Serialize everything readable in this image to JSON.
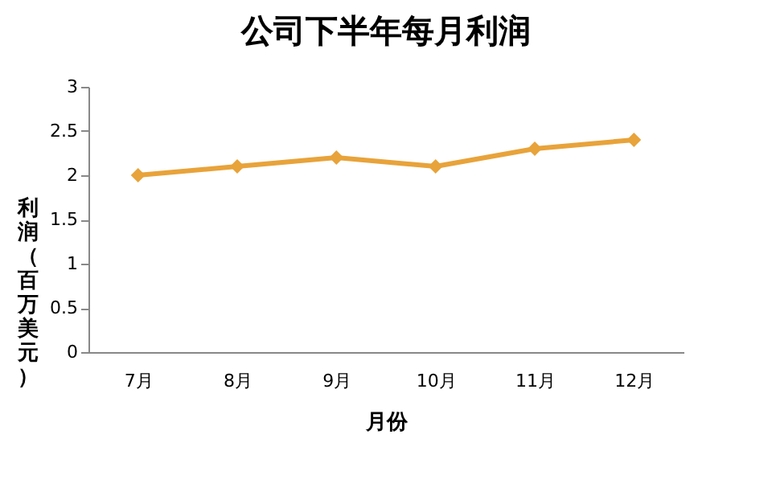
{
  "chart_data": {
    "type": "line",
    "title": "公司下半年每月利润",
    "xlabel": "月份",
    "ylabel": "利润（百万美元）",
    "categories": [
      "7月",
      "8月",
      "9月",
      "10月",
      "11月",
      "12月"
    ],
    "series": [
      {
        "color": "#e8a33a",
        "values": [
          2.0,
          2.1,
          2.2,
          2.1,
          2.3,
          2.4
        ]
      }
    ],
    "ylim": [
      0,
      3
    ],
    "yticks": [
      0,
      0.5,
      1,
      1.5,
      2,
      2.5,
      3
    ],
    "grid": false,
    "marker": "diamond",
    "line_style": "solid"
  }
}
